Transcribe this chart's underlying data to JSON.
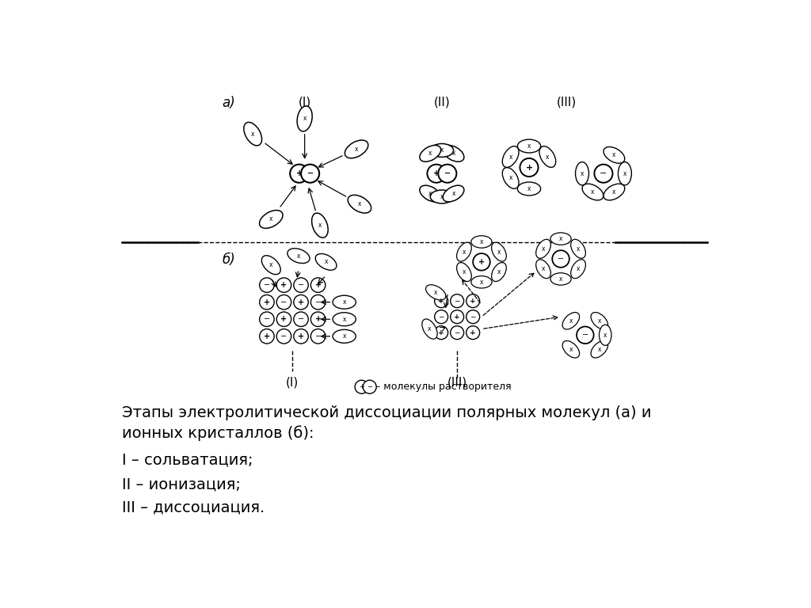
{
  "title_text": "Этапы электролитической диссоциации полярных молекул (а) и\nионных кристаллов (б):",
  "line1": "I – сольватация;",
  "line2": "II – ионизация;",
  "line3": "III – диссоциация.",
  "legend_text": "– молекулы растворителя",
  "label_a": "а)",
  "label_b": "б)",
  "label_I_a": "(I)",
  "label_II_a": "(II)",
  "label_III_a": "(III)",
  "label_I_b": "(I)",
  "label_III_b": "(III)",
  "bg_color": "#ffffff"
}
